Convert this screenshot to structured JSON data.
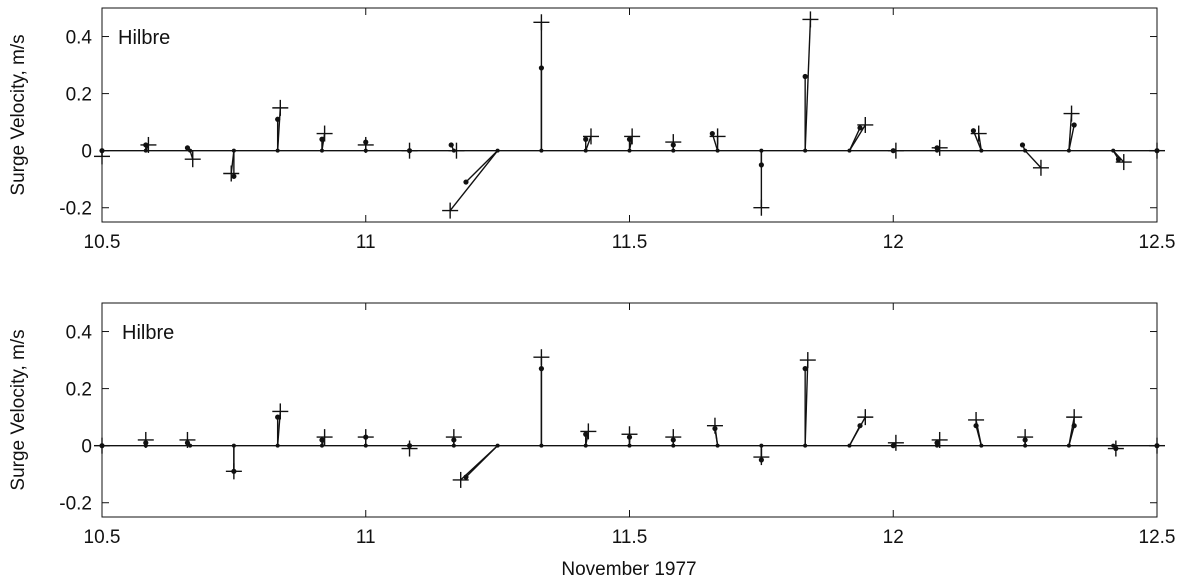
{
  "chart_data": [
    {
      "type": "stick",
      "panel_label": "Hilbre",
      "ylabel": "Surge Velocity, m/s",
      "xlabel": "",
      "xlim": [
        10.5,
        12.5
      ],
      "ylim": [
        -0.25,
        0.5
      ],
      "xticks": [
        "10.5",
        "11",
        "11.5",
        "12",
        "12.5"
      ],
      "yticks": [
        "-0.2",
        "0",
        "0.2",
        "0.4"
      ],
      "grid": false,
      "series": [
        {
          "marker": "dot",
          "sticks": [
            {
              "x": 10.5,
              "dx": 0.0,
              "dy": 0.0
            },
            {
              "x": 10.583,
              "dx": 0.0,
              "dy": 0.02
            },
            {
              "x": 10.667,
              "dx": -0.005,
              "dy": 0.01
            },
            {
              "x": 10.75,
              "dx": 0.0,
              "dy": -0.09
            },
            {
              "x": 10.833,
              "dx": 0.0,
              "dy": 0.11
            },
            {
              "x": 10.917,
              "dx": 0.0,
              "dy": 0.04
            },
            {
              "x": 11.0,
              "dx": 0.0,
              "dy": 0.03
            },
            {
              "x": 11.083,
              "dx": 0.0,
              "dy": 0.0
            },
            {
              "x": 11.167,
              "dx": -0.005,
              "dy": 0.02
            },
            {
              "x": 11.25,
              "dx": -0.06,
              "dy": -0.11
            },
            {
              "x": 11.333,
              "dx": 0.0,
              "dy": 0.29
            },
            {
              "x": 11.417,
              "dx": 0.0,
              "dy": 0.04
            },
            {
              "x": 11.5,
              "dx": 0.0,
              "dy": 0.04
            },
            {
              "x": 11.583,
              "dx": 0.0,
              "dy": 0.02
            },
            {
              "x": 11.667,
              "dx": -0.01,
              "dy": 0.06
            },
            {
              "x": 11.75,
              "dx": 0.0,
              "dy": -0.05
            },
            {
              "x": 11.833,
              "dx": 0.0,
              "dy": 0.26
            },
            {
              "x": 11.917,
              "dx": 0.02,
              "dy": 0.08
            },
            {
              "x": 12.0,
              "dx": 0.0,
              "dy": 0.0
            },
            {
              "x": 12.083,
              "dx": 0.0,
              "dy": 0.01
            },
            {
              "x": 12.167,
              "dx": -0.015,
              "dy": 0.07
            },
            {
              "x": 12.25,
              "dx": -0.005,
              "dy": 0.02
            },
            {
              "x": 12.333,
              "dx": 0.01,
              "dy": 0.09
            },
            {
              "x": 12.417,
              "dx": 0.01,
              "dy": -0.03
            },
            {
              "x": 12.5,
              "dx": 0.0,
              "dy": 0.0
            }
          ]
        },
        {
          "marker": "plus",
          "sticks": [
            {
              "x": 10.5,
              "dx": 0.0,
              "dy": -0.02
            },
            {
              "x": 10.583,
              "dx": 0.005,
              "dy": 0.02
            },
            {
              "x": 10.667,
              "dx": 0.005,
              "dy": -0.03
            },
            {
              "x": 10.75,
              "dx": -0.005,
              "dy": -0.08
            },
            {
              "x": 10.833,
              "dx": 0.005,
              "dy": 0.15
            },
            {
              "x": 10.917,
              "dx": 0.005,
              "dy": 0.06
            },
            {
              "x": 11.0,
              "dx": 0.0,
              "dy": 0.02
            },
            {
              "x": 11.083,
              "dx": 0.0,
              "dy": 0.0
            },
            {
              "x": 11.167,
              "dx": 0.005,
              "dy": 0.0
            },
            {
              "x": 11.25,
              "dx": -0.09,
              "dy": -0.21
            },
            {
              "x": 11.333,
              "dx": 0.0,
              "dy": 0.45
            },
            {
              "x": 11.417,
              "dx": 0.01,
              "dy": 0.05
            },
            {
              "x": 11.5,
              "dx": 0.005,
              "dy": 0.05
            },
            {
              "x": 11.583,
              "dx": 0.0,
              "dy": 0.03
            },
            {
              "x": 11.667,
              "dx": 0.0,
              "dy": 0.05
            },
            {
              "x": 11.75,
              "dx": 0.0,
              "dy": -0.2
            },
            {
              "x": 11.833,
              "dx": 0.01,
              "dy": 0.46
            },
            {
              "x": 11.917,
              "dx": 0.03,
              "dy": 0.09
            },
            {
              "x": 12.0,
              "dx": 0.005,
              "dy": 0.0
            },
            {
              "x": 12.083,
              "dx": 0.005,
              "dy": 0.01
            },
            {
              "x": 12.167,
              "dx": -0.005,
              "dy": 0.06
            },
            {
              "x": 12.25,
              "dx": 0.03,
              "dy": -0.06
            },
            {
              "x": 12.333,
              "dx": 0.005,
              "dy": 0.13
            },
            {
              "x": 12.417,
              "dx": 0.02,
              "dy": -0.04
            },
            {
              "x": 12.5,
              "dx": 0.0,
              "dy": 0.0
            }
          ]
        }
      ]
    },
    {
      "type": "stick",
      "panel_label": "Hilbre",
      "ylabel": "Surge Velocity, m/s",
      "xlabel": "November 1977",
      "xlim": [
        10.5,
        12.5
      ],
      "ylim": [
        -0.25,
        0.5
      ],
      "xticks": [
        "10.5",
        "11",
        "11.5",
        "12",
        "12.5"
      ],
      "yticks": [
        "-0.2",
        "0",
        "0.2",
        "0.4"
      ],
      "grid": false,
      "series": [
        {
          "marker": "dot",
          "sticks": [
            {
              "x": 10.5,
              "dx": 0.0,
              "dy": 0.0
            },
            {
              "x": 10.583,
              "dx": 0.0,
              "dy": 0.01
            },
            {
              "x": 10.667,
              "dx": -0.005,
              "dy": 0.01
            },
            {
              "x": 10.75,
              "dx": 0.0,
              "dy": -0.09
            },
            {
              "x": 10.833,
              "dx": 0.0,
              "dy": 0.1
            },
            {
              "x": 10.917,
              "dx": 0.0,
              "dy": 0.02
            },
            {
              "x": 11.0,
              "dx": 0.0,
              "dy": 0.03
            },
            {
              "x": 11.083,
              "dx": 0.0,
              "dy": 0.0
            },
            {
              "x": 11.167,
              "dx": 0.0,
              "dy": 0.02
            },
            {
              "x": 11.25,
              "dx": -0.06,
              "dy": -0.11
            },
            {
              "x": 11.333,
              "dx": 0.0,
              "dy": 0.27
            },
            {
              "x": 11.417,
              "dx": 0.0,
              "dy": 0.04
            },
            {
              "x": 11.5,
              "dx": 0.0,
              "dy": 0.03
            },
            {
              "x": 11.583,
              "dx": 0.0,
              "dy": 0.02
            },
            {
              "x": 11.667,
              "dx": -0.005,
              "dy": 0.06
            },
            {
              "x": 11.75,
              "dx": 0.0,
              "dy": -0.05
            },
            {
              "x": 11.833,
              "dx": 0.0,
              "dy": 0.27
            },
            {
              "x": 11.917,
              "dx": 0.02,
              "dy": 0.07
            },
            {
              "x": 12.0,
              "dx": 0.0,
              "dy": 0.0
            },
            {
              "x": 12.083,
              "dx": 0.0,
              "dy": 0.01
            },
            {
              "x": 12.167,
              "dx": -0.01,
              "dy": 0.07
            },
            {
              "x": 12.25,
              "dx": 0.0,
              "dy": 0.02
            },
            {
              "x": 12.333,
              "dx": 0.01,
              "dy": 0.07
            },
            {
              "x": 12.417,
              "dx": 0.005,
              "dy": -0.01
            },
            {
              "x": 12.5,
              "dx": 0.0,
              "dy": 0.0
            }
          ]
        },
        {
          "marker": "plus",
          "sticks": [
            {
              "x": 10.5,
              "dx": 0.0,
              "dy": 0.0
            },
            {
              "x": 10.583,
              "dx": 0.0,
              "dy": 0.02
            },
            {
              "x": 10.667,
              "dx": -0.005,
              "dy": 0.02
            },
            {
              "x": 10.75,
              "dx": 0.0,
              "dy": -0.09
            },
            {
              "x": 10.833,
              "dx": 0.005,
              "dy": 0.12
            },
            {
              "x": 10.917,
              "dx": 0.005,
              "dy": 0.03
            },
            {
              "x": 11.0,
              "dx": 0.0,
              "dy": 0.03
            },
            {
              "x": 11.083,
              "dx": 0.0,
              "dy": -0.01
            },
            {
              "x": 11.167,
              "dx": 0.0,
              "dy": 0.03
            },
            {
              "x": 11.25,
              "dx": -0.07,
              "dy": -0.12
            },
            {
              "x": 11.333,
              "dx": 0.0,
              "dy": 0.31
            },
            {
              "x": 11.417,
              "dx": 0.005,
              "dy": 0.05
            },
            {
              "x": 11.5,
              "dx": 0.0,
              "dy": 0.04
            },
            {
              "x": 11.583,
              "dx": 0.0,
              "dy": 0.03
            },
            {
              "x": 11.667,
              "dx": -0.005,
              "dy": 0.07
            },
            {
              "x": 11.75,
              "dx": 0.0,
              "dy": -0.04
            },
            {
              "x": 11.833,
              "dx": 0.005,
              "dy": 0.3
            },
            {
              "x": 11.917,
              "dx": 0.03,
              "dy": 0.1
            },
            {
              "x": 12.0,
              "dx": 0.005,
              "dy": 0.01
            },
            {
              "x": 12.083,
              "dx": 0.005,
              "dy": 0.02
            },
            {
              "x": 12.167,
              "dx": -0.01,
              "dy": 0.09
            },
            {
              "x": 12.25,
              "dx": 0.0,
              "dy": 0.03
            },
            {
              "x": 12.333,
              "dx": 0.01,
              "dy": 0.1
            },
            {
              "x": 12.417,
              "dx": 0.005,
              "dy": -0.01
            },
            {
              "x": 12.5,
              "dx": 0.0,
              "dy": 0.0
            }
          ]
        }
      ]
    }
  ],
  "colors": {
    "ink": "#111111",
    "background": "#ffffff"
  }
}
